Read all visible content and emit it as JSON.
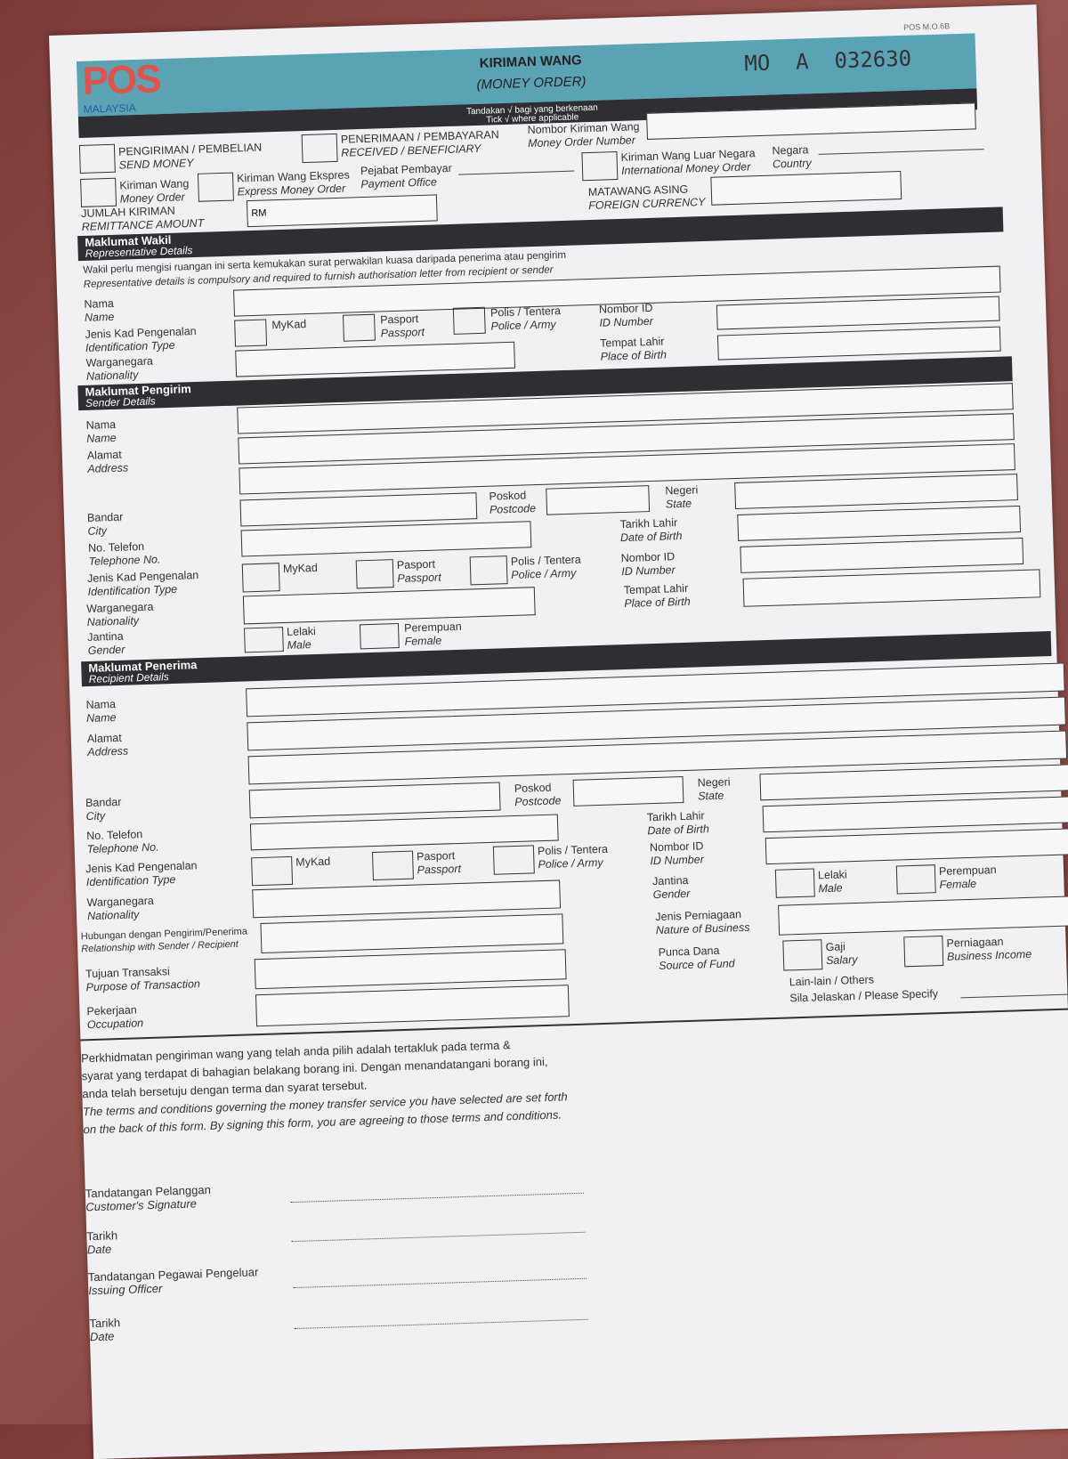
{
  "header": {
    "logo_text": "POS",
    "logo_sub": "MALAYSIA",
    "form_code": "POS M.O.6B",
    "title": "KIRIMAN WANG",
    "subtitle": "(MONEY ORDER)",
    "serial": "MO  A  032630",
    "tick_ms": "Tandakan √ bagi yang berkenaan",
    "tick_en": "Tick √ where applicable",
    "colors": {
      "band": "#5aa3b2",
      "logo": "#e0524a",
      "dark": "#2e2e33"
    }
  },
  "top": {
    "send": [
      "PENGIRIMAN / PEMBELIAN",
      "SEND MONEY"
    ],
    "receive": [
      "PENERIMAAN / PEMBAYARAN",
      "RECEIVED / BENEFICIARY"
    ],
    "mo_number": [
      "Nombor Kiriman Wang",
      "Money Order Number"
    ],
    "money_order": [
      "Kiriman Wang",
      "Money Order"
    ],
    "express": [
      "Kiriman Wang Ekspres",
      "Express Money Order"
    ],
    "payment_office": [
      "Pejabat Pembayar",
      "Payment Office"
    ],
    "international": [
      "Kiriman Wang Luar Negara",
      "International Money Order"
    ],
    "country": [
      "Negara",
      "Country"
    ],
    "amount": [
      "JUMLAH KIRIMAN",
      "REMITTANCE AMOUNT"
    ],
    "amount_prefix": "RM",
    "currency": [
      "MATAWANG ASING",
      "FOREIGN CURRENCY"
    ]
  },
  "rep": {
    "title": [
      "Maklumat Wakil",
      "Representative Details"
    ],
    "note_ms": "Wakil perlu mengisi ruangan ini serta kemukakan surat perwakilan kuasa daripada penerima atau pengirim",
    "note_en": "Representative details is compulsory and required to furnish authorisation letter from recipient or sender"
  },
  "sender": {
    "title": [
      "Maklumat Pengirim",
      "Sender Details"
    ]
  },
  "recipient": {
    "title": [
      "Maklumat Penerima",
      "Recipient Details"
    ]
  },
  "labels": {
    "name": [
      "Nama",
      "Name"
    ],
    "address": [
      "Alamat",
      "Address"
    ],
    "city": [
      "Bandar",
      "City"
    ],
    "postcode": [
      "Poskod",
      "Postcode"
    ],
    "state": [
      "Negeri",
      "State"
    ],
    "phone": [
      "No. Telefon",
      "Telephone No."
    ],
    "dob": [
      "Tarikh Lahir",
      "Date of Birth"
    ],
    "idtype": [
      "Jenis Kad Pengenalan",
      "Identification Type"
    ],
    "mykad": "MyKad",
    "passport": [
      "Pasport",
      "Passport"
    ],
    "police": [
      "Polis / Tentera",
      "Police / Army"
    ],
    "idnum": [
      "Nombor ID",
      "ID Number"
    ],
    "nationality": [
      "Warganegara",
      "Nationality"
    ],
    "pob": [
      "Tempat Lahir",
      "Place of Birth"
    ],
    "gender": [
      "Jantina",
      "Gender"
    ],
    "male": [
      "Lelaki",
      "Male"
    ],
    "female": [
      "Perempuan",
      "Female"
    ],
    "relationship": [
      "Hubungan dengan Pengirim/Penerima",
      "Relationship with Sender / Recipient"
    ],
    "business": [
      "Jenis Perniagaan",
      "Nature of Business"
    ],
    "purpose": [
      "Tujuan Transaksi",
      "Purpose of Transaction"
    ],
    "fund": [
      "Punca Dana",
      "Source of Fund"
    ],
    "salary": [
      "Gaji",
      "Salary"
    ],
    "biz_income": [
      "Perniagaan",
      "Business Income"
    ],
    "others": "Lain-lain / Others",
    "specify": "Sila Jelaskan / Please Specify",
    "occupation": [
      "Pekerjaan",
      "Occupation"
    ]
  },
  "terms": {
    "ms": [
      "Perkhidmatan pengiriman wang yang telah anda pilih adalah tertakluk pada terma &",
      "syarat yang terdapat di bahagian belakang borang ini. Dengan menandatangani borang ini,",
      "anda telah bersetuju dengan terma dan syarat tersebut."
    ],
    "en": [
      "The terms and conditions governing the money transfer service you have selected are set forth",
      "on the back of this form. By signing this form, you are agreeing to those terms and conditions."
    ]
  },
  "signatures": [
    [
      "Tandatangan Pelanggan",
      "Customer's Signature"
    ],
    [
      "Tarikh",
      "Date"
    ],
    [
      "Tandatangan Pegawai Pengeluar",
      "Issuing Officer"
    ],
    [
      "Tarikh",
      "Date"
    ]
  ]
}
